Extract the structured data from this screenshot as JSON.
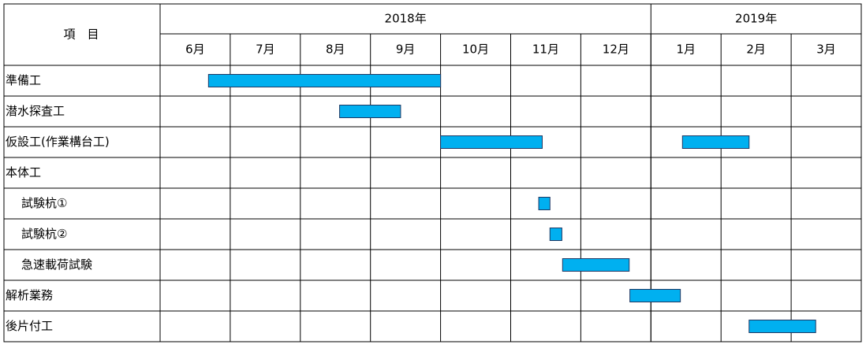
{
  "chart_data": {
    "type": "gantt",
    "corner_label": "項　目",
    "years": [
      {
        "label": "2018年",
        "months": 7
      },
      {
        "label": "2019年",
        "months": 3
      }
    ],
    "categories": [
      "6月",
      "7月",
      "8月",
      "9月",
      "10月",
      "11月",
      "12月",
      "1月",
      "2月",
      "3月"
    ],
    "xlim": [
      0,
      10
    ],
    "color": "#00b0f0",
    "tasks": [
      {
        "label": "準備工",
        "indent": false,
        "spans": [
          [
            0.69,
            4.0
          ]
        ]
      },
      {
        "label": "潜水探査工",
        "indent": false,
        "spans": [
          [
            2.56,
            3.43
          ]
        ]
      },
      {
        "label": "仮設工(作業構台工)",
        "indent": false,
        "spans": [
          [
            4.0,
            5.45
          ],
          [
            7.45,
            8.4
          ]
        ]
      },
      {
        "label": "本体工",
        "indent": false,
        "spans": []
      },
      {
        "label": "試験杭①",
        "indent": true,
        "spans": [
          [
            5.4,
            5.56
          ]
        ]
      },
      {
        "label": "試験杭②",
        "indent": true,
        "spans": [
          [
            5.56,
            5.73
          ]
        ]
      },
      {
        "label": "急速載荷試験",
        "indent": true,
        "spans": [
          [
            5.74,
            6.69
          ]
        ]
      },
      {
        "label": "解析業務",
        "indent": false,
        "spans": [
          [
            6.7,
            7.42
          ]
        ]
      },
      {
        "label": "後片付工",
        "indent": false,
        "spans": [
          [
            8.4,
            9.35
          ]
        ]
      }
    ]
  }
}
